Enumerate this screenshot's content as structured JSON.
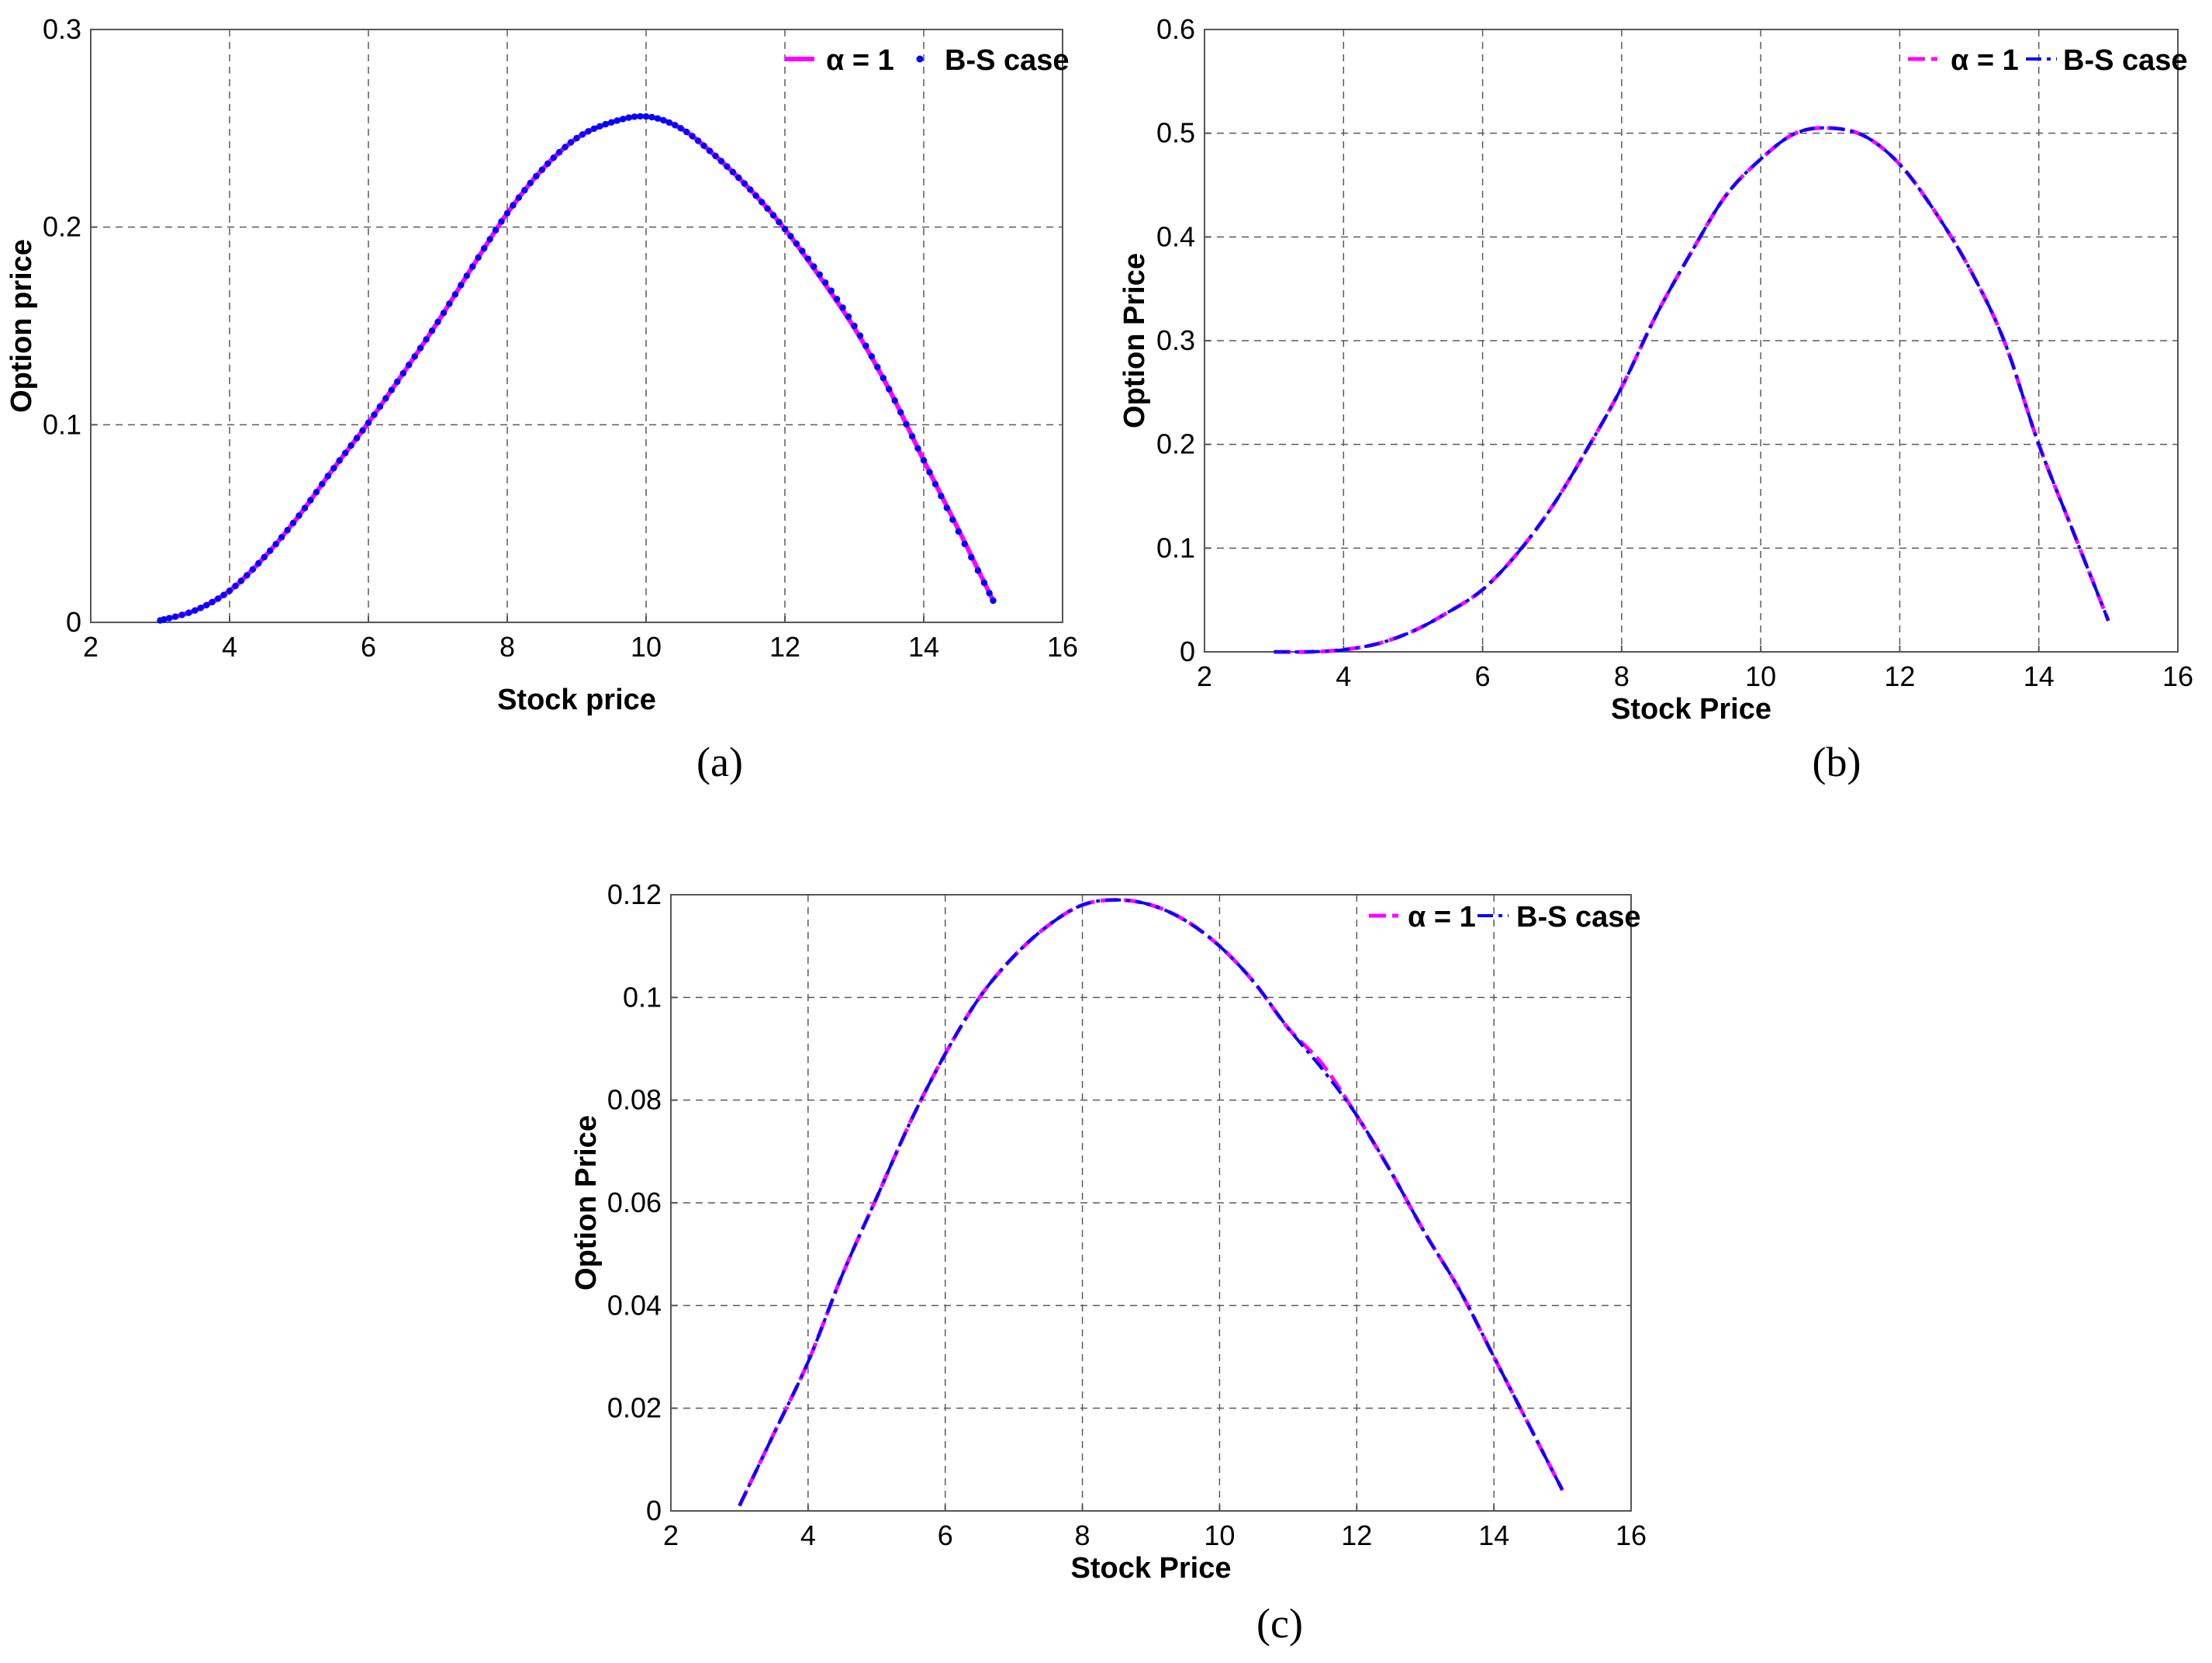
{
  "chart_data": [
    {
      "type": "line",
      "panel_label": "(a)",
      "xlabel": "Stock price",
      "ylabel": "Option price",
      "xlim": [
        2,
        16
      ],
      "ylim": [
        0,
        0.3
      ],
      "xticks": [
        "2",
        "4",
        "6",
        "8",
        "10",
        "12",
        "14",
        "16"
      ],
      "yticks": [
        "0",
        "0.1",
        "0.2",
        "0.3"
      ],
      "grid": true,
      "legend_position": "top-right",
      "x": [
        3,
        3.5,
        4,
        4.5,
        5,
        5.5,
        6,
        6.5,
        7,
        7.5,
        8,
        8.5,
        9,
        9.5,
        10,
        10.5,
        11,
        11.5,
        12,
        12.5,
        13,
        13.5,
        14,
        14.5,
        15
      ],
      "series": [
        {
          "name": "α = 1",
          "style": "solid",
          "color": "#ff00ff",
          "values": [
            0.001,
            0.006,
            0.016,
            0.033,
            0.054,
            0.078,
            0.101,
            0.126,
            0.152,
            0.18,
            0.207,
            0.229,
            0.245,
            0.253,
            0.256,
            0.25,
            0.236,
            0.219,
            0.199,
            0.175,
            0.149,
            0.118,
            0.082,
            0.047,
            0.011
          ]
        },
        {
          "name": "B-S case",
          "style": "dots",
          "color": "#0000ff",
          "values": [
            0.001,
            0.006,
            0.016,
            0.033,
            0.054,
            0.078,
            0.101,
            0.126,
            0.152,
            0.18,
            0.207,
            0.229,
            0.245,
            0.253,
            0.256,
            0.25,
            0.236,
            0.219,
            0.199,
            0.176,
            0.15,
            0.118,
            0.082,
            0.046,
            0.011
          ]
        }
      ]
    },
    {
      "type": "line",
      "panel_label": "(b)",
      "xlabel": "Stock Price",
      "ylabel": "Option Price",
      "xlim": [
        2,
        16
      ],
      "ylim": [
        0,
        0.6
      ],
      "xticks": [
        "2",
        "4",
        "6",
        "8",
        "10",
        "12",
        "14",
        "16"
      ],
      "yticks": [
        "0",
        "0.1",
        "0.2",
        "0.3",
        "0.4",
        "0.5",
        "0.6"
      ],
      "grid": true,
      "legend_position": "top-right",
      "x": [
        3,
        3.5,
        4,
        4.5,
        5,
        5.5,
        6,
        6.5,
        7,
        7.5,
        8,
        8.5,
        9,
        9.5,
        10,
        10.5,
        11,
        11.5,
        12,
        12.5,
        13,
        13.5,
        14,
        14.5,
        15
      ],
      "series": [
        {
          "name": "α = 1",
          "style": "dashed",
          "color": "#ff00ff",
          "values": [
            0.0,
            0.0,
            0.002,
            0.008,
            0.02,
            0.038,
            0.06,
            0.095,
            0.14,
            0.195,
            0.255,
            0.325,
            0.385,
            0.44,
            0.475,
            0.5,
            0.505,
            0.497,
            0.47,
            0.425,
            0.37,
            0.3,
            0.2,
            0.115,
            0.03
          ]
        },
        {
          "name": "B-S case",
          "style": "dash-dot",
          "color": "#0000ff",
          "values": [
            0.0,
            0.0,
            0.002,
            0.008,
            0.02,
            0.038,
            0.06,
            0.095,
            0.14,
            0.195,
            0.255,
            0.325,
            0.385,
            0.44,
            0.475,
            0.5,
            0.505,
            0.497,
            0.47,
            0.425,
            0.37,
            0.3,
            0.2,
            0.115,
            0.03
          ]
        }
      ]
    },
    {
      "type": "line",
      "panel_label": "(c)",
      "xlabel": "Stock Price",
      "ylabel": "Option Price",
      "xlim": [
        2,
        16
      ],
      "ylim": [
        0,
        0.12
      ],
      "xticks": [
        "2",
        "4",
        "6",
        "8",
        "10",
        "12",
        "14",
        "16"
      ],
      "yticks": [
        "0",
        "0.02",
        "0.04",
        "0.06",
        "0.08",
        "0.1",
        "0.12"
      ],
      "grid": true,
      "legend_position": "top-right",
      "x": [
        3,
        3.5,
        4,
        4.5,
        5,
        5.5,
        6,
        6.5,
        7,
        7.5,
        8,
        8.5,
        9,
        9.5,
        10,
        10.5,
        11,
        11.5,
        12,
        12.5,
        13,
        13.5,
        14,
        14.5,
        15
      ],
      "series": [
        {
          "name": "α = 1",
          "style": "dashed",
          "color": "#ff00ff",
          "values": [
            0.001,
            0.015,
            0.029,
            0.046,
            0.061,
            0.076,
            0.089,
            0.1,
            0.108,
            0.114,
            0.118,
            0.119,
            0.118,
            0.115,
            0.11,
            0.103,
            0.094,
            0.087,
            0.077,
            0.066,
            0.054,
            0.043,
            0.03,
            0.017,
            0.004
          ]
        },
        {
          "name": "B-S case",
          "style": "dash-dot",
          "color": "#0000ff",
          "values": [
            0.001,
            0.015,
            0.029,
            0.046,
            0.061,
            0.076,
            0.089,
            0.1,
            0.108,
            0.114,
            0.118,
            0.119,
            0.118,
            0.115,
            0.11,
            0.103,
            0.094,
            0.086,
            0.077,
            0.066,
            0.054,
            0.043,
            0.03,
            0.017,
            0.004
          ]
        }
      ]
    }
  ]
}
